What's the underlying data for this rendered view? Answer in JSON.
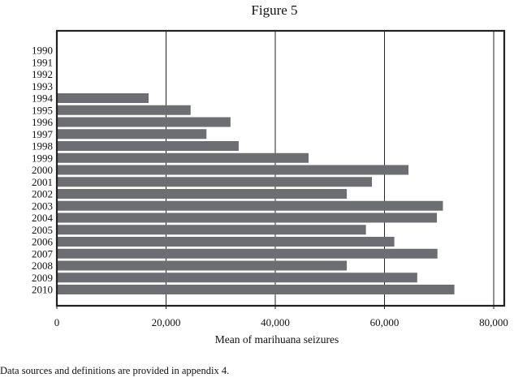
{
  "chart_data": {
    "type": "bar",
    "orientation": "horizontal",
    "title": "Figure 5",
    "xlabel": "Mean of marihuana seizures",
    "ylabel": "",
    "xlim": [
      0,
      80000
    ],
    "xticks": [
      0,
      20000,
      40000,
      60000,
      80000
    ],
    "xtick_labels": [
      "0",
      "20,000",
      "40,000",
      "60,000",
      "80,000"
    ],
    "grid": "vertical",
    "categories": [
      "1990",
      "1991",
      "1992",
      "1993",
      "1994",
      "1995",
      "1996",
      "1997",
      "1998",
      "1999",
      "2000",
      "2001",
      "2002",
      "2003",
      "2004",
      "2005",
      "2006",
      "2007",
      "2008",
      "2009",
      "2010"
    ],
    "values": [
      0,
      0,
      0,
      0,
      16800,
      24500,
      31800,
      27400,
      33300,
      46100,
      64400,
      57700,
      53100,
      70700,
      69600,
      56600,
      61800,
      69700,
      53100,
      66000,
      72800
    ],
    "bar_color": "#6d6e71"
  },
  "footnote": "Data sources and definitions are provided in appendix 4."
}
